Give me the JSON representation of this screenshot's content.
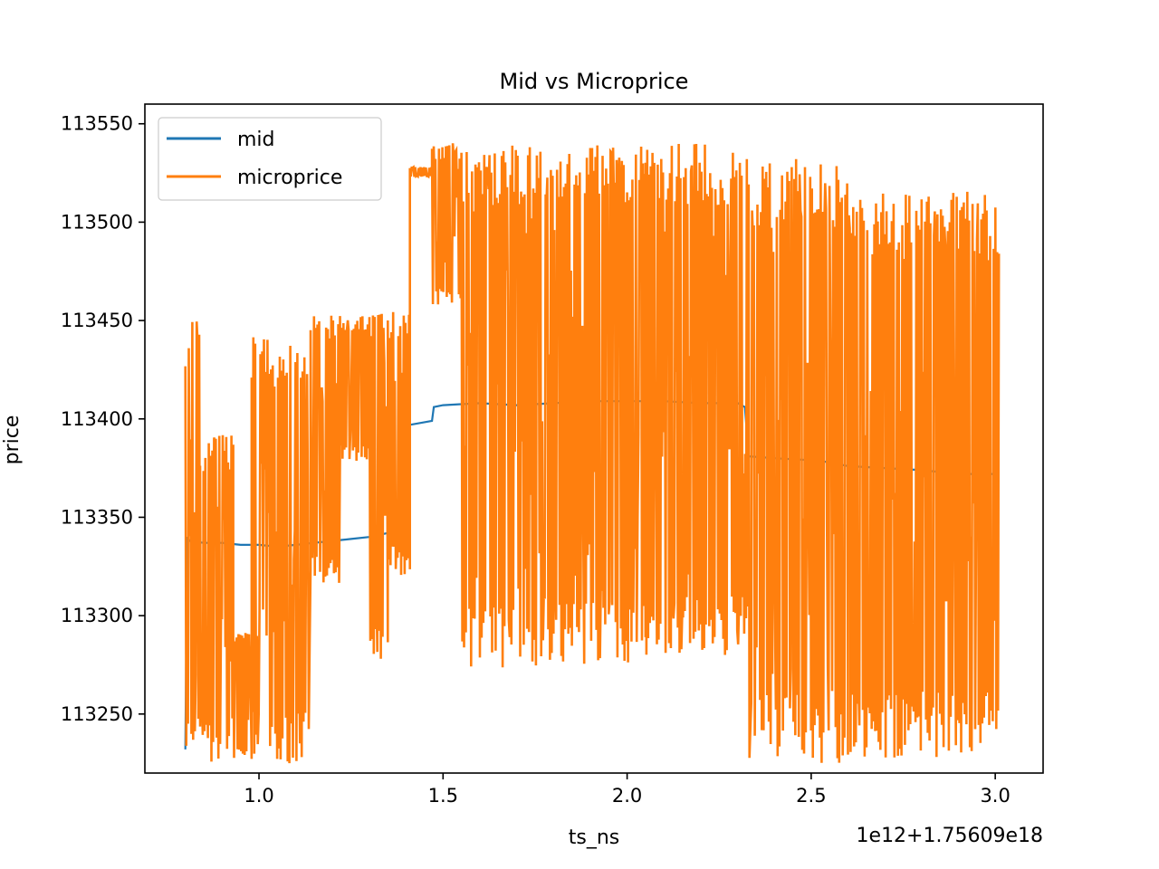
{
  "figure": {
    "title": "Mid vs Microprice",
    "xlabel": "ts_ns",
    "ylabel": "price",
    "x_offset_label": "1e12+1.75609e18"
  },
  "chart_data": {
    "type": "line",
    "title": "Mid vs Microprice",
    "xlabel": "ts_ns",
    "ylabel": "price",
    "x_offset_text": "1e12+1.75609e18",
    "xlim": [
      0.69,
      3.13
    ],
    "ylim": [
      113220,
      113560
    ],
    "xticks": [
      1.0,
      1.5,
      2.0,
      2.5,
      3.0
    ],
    "xtick_labels": [
      "1.0",
      "1.5",
      "2.0",
      "2.5",
      "3.0"
    ],
    "yticks": [
      113250,
      113300,
      113350,
      113400,
      113450,
      113500,
      113550
    ],
    "ytick_labels": [
      "113250",
      "113300",
      "113350",
      "113400",
      "113450",
      "113500",
      "113550"
    ],
    "grid": false,
    "legend": {
      "position": "top-left",
      "entries": [
        "mid",
        "microprice"
      ]
    },
    "series": [
      {
        "name": "mid",
        "color": "#1f77b4",
        "x": [
          0.8,
          0.805,
          0.81,
          0.85,
          0.9,
          0.95,
          1.0,
          1.05,
          1.1,
          1.15,
          1.2,
          1.25,
          1.3,
          1.35,
          1.38,
          1.385,
          1.39,
          1.4,
          1.405,
          1.41,
          1.47,
          1.475,
          1.5,
          1.6,
          1.7,
          1.8,
          1.9,
          2.0,
          2.1,
          2.2,
          2.3,
          2.32,
          2.33,
          2.4,
          2.5,
          2.55,
          2.6,
          2.7,
          2.8,
          2.85,
          2.9,
          3.0,
          3.01
        ],
        "y": [
          113232,
          113340,
          113338,
          113337,
          113337,
          113336,
          113336,
          113335,
          113336,
          113337,
          113338,
          113339,
          113340,
          113342,
          113343,
          113353,
          113355,
          113362,
          113395,
          113397,
          113399,
          113406,
          113407,
          113408,
          113407,
          113408,
          113409,
          113409,
          113409,
          113408,
          113408,
          113406,
          113381,
          113380,
          113379,
          113378,
          113376,
          113375,
          113374,
          113373,
          113372,
          113372,
          113371
        ]
      },
      {
        "name": "microprice",
        "color": "#ff7f0e",
        "segments": [
          {
            "x0": 0.8,
            "x1": 0.84,
            "hi": 113450,
            "lo": 113232
          },
          {
            "x0": 0.84,
            "x1": 0.93,
            "hi": 113392,
            "lo": 113225
          },
          {
            "x0": 0.93,
            "x1": 0.98,
            "hi": 113294,
            "lo": 113225
          },
          {
            "x0": 0.98,
            "x1": 1.14,
            "hi": 113445,
            "lo": 113225
          },
          {
            "x0": 1.14,
            "x1": 1.22,
            "hi": 113453,
            "lo": 113316
          },
          {
            "x0": 1.22,
            "x1": 1.3,
            "hi": 113454,
            "lo": 113378
          },
          {
            "x0": 1.3,
            "x1": 1.35,
            "hi": 113454,
            "lo": 113272
          },
          {
            "x0": 1.35,
            "x1": 1.41,
            "hi": 113455,
            "lo": 113320
          },
          {
            "x0": 1.41,
            "x1": 1.47,
            "hi": 113528,
            "lo": 113523
          },
          {
            "x0": 1.47,
            "x1": 1.55,
            "hi": 113541,
            "lo": 113457
          },
          {
            "x0": 1.55,
            "x1": 1.8,
            "hi": 113540,
            "lo": 113272
          },
          {
            "x0": 1.8,
            "x1": 2.05,
            "hi": 113541,
            "lo": 113275
          },
          {
            "x0": 2.05,
            "x1": 2.33,
            "hi": 113540,
            "lo": 113279
          },
          {
            "x0": 2.33,
            "x1": 2.44,
            "hi": 113531,
            "lo": 113225
          },
          {
            "x0": 2.44,
            "x1": 2.6,
            "hi": 113533,
            "lo": 113225
          },
          {
            "x0": 2.6,
            "x1": 2.8,
            "hi": 113516,
            "lo": 113225
          },
          {
            "x0": 2.8,
            "x1": 3.01,
            "hi": 113516,
            "lo": 113228
          }
        ]
      }
    ]
  }
}
